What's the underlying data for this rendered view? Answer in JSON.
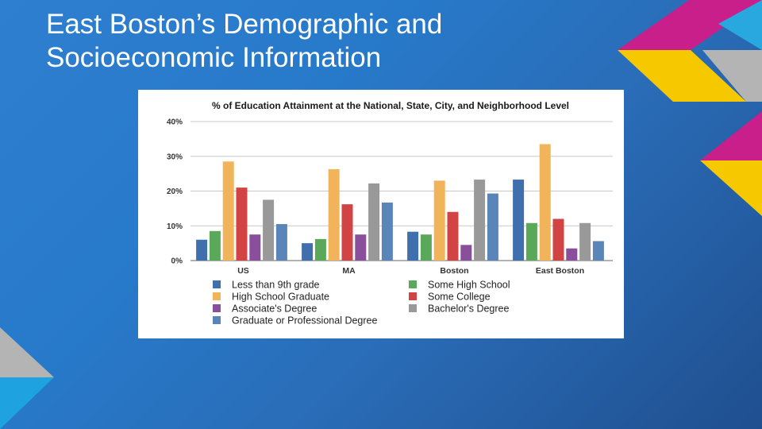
{
  "slide": {
    "title": "East Boston’s Demographic and Socioeconomic Information"
  },
  "chart_data": {
    "type": "bar",
    "title": "% of Education Attainment at the National, State, City, and Neighborhood Level",
    "xlabel": "",
    "ylabel": "",
    "ylim": [
      0,
      40
    ],
    "yticks": [
      {
        "value": 0,
        "label": "0%"
      },
      {
        "value": 10,
        "label": "10%"
      },
      {
        "value": 20,
        "label": "20%"
      },
      {
        "value": 30,
        "label": "30%"
      },
      {
        "value": 40,
        "label": "40%"
      }
    ],
    "grid": true,
    "legend_position": "bottom",
    "categories": [
      "US",
      "MA",
      "Boston",
      "East Boston"
    ],
    "series": [
      {
        "name": "Less than 9th grade",
        "color": "#3f6fad",
        "values": [
          6,
          5,
          8.3,
          23.3
        ]
      },
      {
        "name": "Some High School",
        "color": "#5aa95a",
        "values": [
          8.5,
          6.2,
          7.5,
          10.8
        ]
      },
      {
        "name": "High School Graduate",
        "color": "#f2b45a",
        "values": [
          28.5,
          26.3,
          23,
          33.5
        ]
      },
      {
        "name": "Some College",
        "color": "#d24444",
        "values": [
          21,
          16.2,
          14,
          12
        ]
      },
      {
        "name": "Associate's Degree",
        "color": "#8a4f9a",
        "values": [
          7.5,
          7.5,
          4.5,
          3.5
        ]
      },
      {
        "name": "Bachelor's Degree",
        "color": "#999999",
        "values": [
          17.5,
          22.2,
          23.3,
          10.8
        ]
      },
      {
        "name": "Graduate or Professional Degree",
        "color": "#5a85b8",
        "values": [
          10.5,
          16.7,
          19.3,
          5.6
        ]
      }
    ]
  }
}
